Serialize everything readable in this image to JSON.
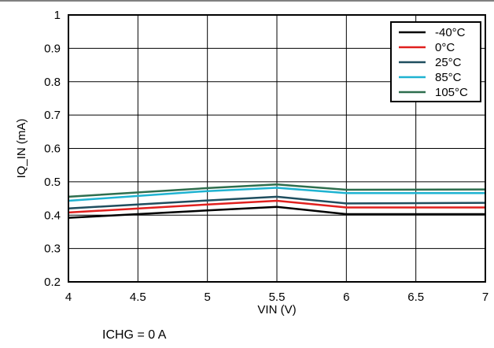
{
  "chart_data": {
    "type": "line",
    "xlabel": "VIN (V)",
    "ylabel": "IQ_IN (mA)",
    "xlim": [
      4,
      7
    ],
    "ylim": [
      0.2,
      1
    ],
    "xticks": [
      4,
      4.5,
      5,
      5.5,
      6,
      6.5,
      7
    ],
    "xtick_labels": [
      "4",
      "4.5",
      "5",
      "5.5",
      "6",
      "6.5",
      "7"
    ],
    "yticks": [
      0.2,
      0.3,
      0.4,
      0.5,
      0.6,
      0.7,
      0.8,
      0.9,
      1
    ],
    "ytick_labels": [
      "0.2",
      "0.3",
      "0.4",
      "0.5",
      "0.6",
      "0.7",
      "0.8",
      "0.9",
      "1"
    ],
    "grid": true,
    "legend_position": "top-right",
    "x": [
      4,
      5,
      5.5,
      6,
      7
    ],
    "series": [
      {
        "name": "-40°C",
        "color": "#000000",
        "values": [
          0.392,
          0.414,
          0.425,
          0.403,
          0.403
        ]
      },
      {
        "name": "0°C",
        "color": "#e0201e",
        "values": [
          0.408,
          0.432,
          0.443,
          0.423,
          0.423
        ]
      },
      {
        "name": "25°C",
        "color": "#1f4e5f",
        "values": [
          0.42,
          0.444,
          0.455,
          0.435,
          0.437
        ]
      },
      {
        "name": "85°C",
        "color": "#1fb3d1",
        "values": [
          0.443,
          0.472,
          0.482,
          0.466,
          0.466
        ]
      },
      {
        "name": "105°C",
        "color": "#2e6e4e",
        "values": [
          0.455,
          0.481,
          0.492,
          0.476,
          0.477
        ]
      }
    ]
  },
  "note": "ICHG = 0 A"
}
